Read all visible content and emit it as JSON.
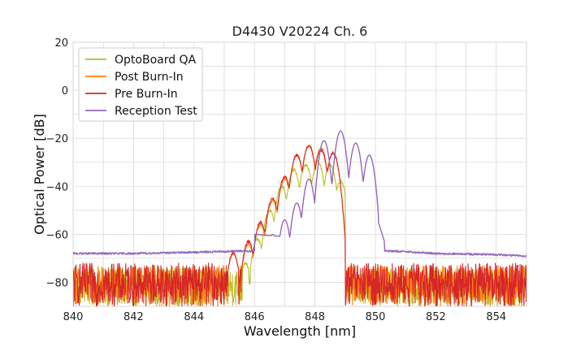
{
  "chart_data": {
    "type": "line",
    "title": "D4430 V20224 Ch. 6",
    "xlabel": "Wavelength [nm]",
    "ylabel": "Optical Power [dB]",
    "xlim": [
      840,
      855
    ],
    "ylim": [
      -90,
      20
    ],
    "xticks": [
      840,
      842,
      844,
      846,
      848,
      850,
      852,
      854
    ],
    "xtick_labels": [
      "840",
      "842",
      "844",
      "846",
      "848",
      "850",
      "852",
      "854"
    ],
    "yticks": [
      -80,
      -60,
      -40,
      -20,
      0,
      20
    ],
    "ytick_labels": [
      "−80",
      "−60",
      "−40",
      "−20",
      "0",
      "20"
    ],
    "grid": true,
    "legend_position": "top-left",
    "series": [
      {
        "name": "OptoBoard QA",
        "color": "#bcbd22",
        "noise_range": [
          839.9,
          855.0
        ],
        "noise_floor": [
          -90,
          -74
        ],
        "peaks": [
          {
            "x": 845.7,
            "y": -72
          },
          {
            "x": 846.1,
            "y": -62
          },
          {
            "x": 846.5,
            "y": -50
          },
          {
            "x": 846.9,
            "y": -40
          },
          {
            "x": 847.3,
            "y": -33
          },
          {
            "x": 847.7,
            "y": -31
          },
          {
            "x": 848.1,
            "y": -30
          },
          {
            "x": 848.5,
            "y": -31
          },
          {
            "x": 848.85,
            "y": -38
          }
        ],
        "peak_range": [
          845.4,
          849.0
        ],
        "baseline": -75
      },
      {
        "name": "Post Burn-In",
        "color": "#ff7f0e",
        "noise_range": [
          839.9,
          855.0
        ],
        "noise_floor": [
          -90,
          -73
        ],
        "peaks": [
          {
            "x": 845.3,
            "y": -68
          },
          {
            "x": 845.8,
            "y": -64
          },
          {
            "x": 846.2,
            "y": -56
          },
          {
            "x": 846.6,
            "y": -46
          },
          {
            "x": 847.0,
            "y": -37
          },
          {
            "x": 847.4,
            "y": -27
          },
          {
            "x": 847.8,
            "y": -23
          },
          {
            "x": 848.2,
            "y": -24
          },
          {
            "x": 848.6,
            "y": -26
          }
        ],
        "peak_range": [
          845.0,
          849.0
        ],
        "baseline": -76
      },
      {
        "name": "Pre Burn-In",
        "color": "#d62728",
        "noise_range": [
          839.9,
          855.0
        ],
        "noise_floor": [
          -90,
          -72
        ],
        "peaks": [
          {
            "x": 845.3,
            "y": -68
          },
          {
            "x": 845.8,
            "y": -63
          },
          {
            "x": 846.2,
            "y": -55
          },
          {
            "x": 846.6,
            "y": -45
          },
          {
            "x": 847.0,
            "y": -36
          },
          {
            "x": 847.4,
            "y": -27
          },
          {
            "x": 847.8,
            "y": -23
          },
          {
            "x": 848.2,
            "y": -25
          },
          {
            "x": 848.6,
            "y": -26
          }
        ],
        "peak_range": [
          845.0,
          849.0
        ],
        "baseline": -76
      },
      {
        "name": "Reception Test",
        "color": "#9467bd",
        "baseline_points": [
          {
            "x": 840,
            "y": -68
          },
          {
            "x": 842,
            "y": -68
          },
          {
            "x": 844,
            "y": -67.5
          },
          {
            "x": 845.5,
            "y": -67
          },
          {
            "x": 850.6,
            "y": -67
          },
          {
            "x": 852,
            "y": -68
          },
          {
            "x": 854,
            "y": -68.5
          },
          {
            "x": 855,
            "y": -69
          }
        ],
        "peaks": [
          {
            "x": 846.2,
            "y": -64
          },
          {
            "x": 846.6,
            "y": -60
          },
          {
            "x": 847.0,
            "y": -54
          },
          {
            "x": 847.4,
            "y": -47
          },
          {
            "x": 847.8,
            "y": -37
          },
          {
            "x": 848.3,
            "y": -21
          },
          {
            "x": 848.85,
            "y": -17
          },
          {
            "x": 849.35,
            "y": -22
          },
          {
            "x": 849.8,
            "y": -27
          }
        ],
        "peak_range": [
          845.7,
          850.3
        ]
      }
    ]
  }
}
